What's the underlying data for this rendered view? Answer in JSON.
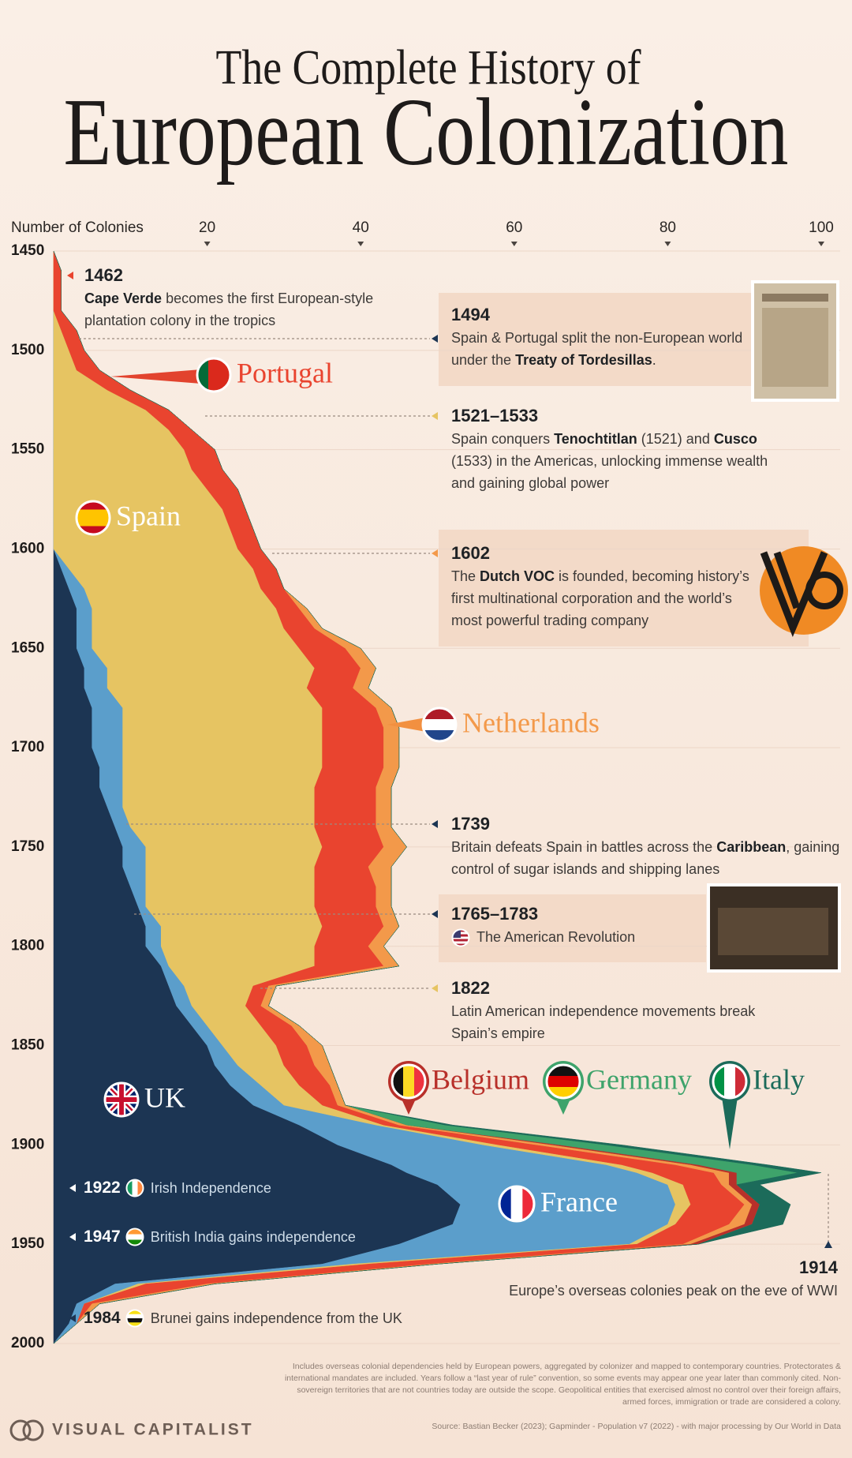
{
  "chart_data": {
    "type": "area",
    "stacked": true,
    "orientation": "vertical",
    "title": "The Complete History of",
    "subtitle": "European Colonization",
    "ylabel": "Number of Colonies",
    "xlim": [
      1450,
      2000
    ],
    "xticks": [
      1450,
      1500,
      1550,
      1600,
      1650,
      1700,
      1750,
      1800,
      1850,
      1900,
      1950,
      2000
    ],
    "ylim": [
      0,
      100
    ],
    "yticks": [
      20,
      40,
      60,
      80,
      100
    ],
    "grid": true,
    "x": [
      1450,
      1460,
      1470,
      1480,
      1490,
      1500,
      1510,
      1520,
      1530,
      1540,
      1550,
      1560,
      1570,
      1580,
      1590,
      1600,
      1610,
      1620,
      1630,
      1640,
      1650,
      1660,
      1670,
      1680,
      1690,
      1700,
      1710,
      1720,
      1730,
      1740,
      1750,
      1760,
      1770,
      1780,
      1790,
      1800,
      1810,
      1820,
      1830,
      1840,
      1850,
      1860,
      1870,
      1880,
      1890,
      1900,
      1910,
      1914,
      1920,
      1930,
      1940,
      1950,
      1960,
      1970,
      1980,
      1990,
      2000
    ],
    "series": [
      {
        "name": "UK",
        "color": "#1c3553",
        "values": [
          0,
          0,
          0,
          0,
          0,
          0,
          0,
          0,
          0,
          0,
          0,
          0,
          0,
          0,
          0,
          0,
          1,
          2,
          3,
          3,
          3,
          4,
          4,
          5,
          5,
          5,
          6,
          6,
          7,
          8,
          9,
          9,
          10,
          11,
          12,
          12,
          14,
          15,
          16,
          18,
          20,
          21,
          23,
          26,
          32,
          37,
          44,
          46,
          50,
          53,
          52,
          45,
          35,
          8,
          3,
          2,
          0
        ]
      },
      {
        "name": "France",
        "color": "#5b9ecb",
        "values": [
          0,
          0,
          0,
          0,
          0,
          0,
          0,
          0,
          0,
          0,
          0,
          0,
          0,
          0,
          0,
          0,
          1,
          2,
          2,
          2,
          2,
          3,
          3,
          4,
          4,
          4,
          3,
          3,
          2,
          2,
          3,
          3,
          2,
          1,
          2,
          2,
          1,
          2,
          2,
          2,
          2,
          3,
          4,
          4,
          10,
          19,
          28,
          30,
          30,
          28,
          28,
          30,
          4,
          3,
          1,
          1,
          0
        ]
      },
      {
        "name": "Spain",
        "color": "#e6c462",
        "values": [
          0,
          0,
          0,
          0,
          1,
          2,
          3,
          7,
          12,
          15,
          17,
          18,
          20,
          22,
          23,
          24,
          24,
          23,
          24,
          25,
          27,
          27,
          26,
          26,
          26,
          26,
          26,
          25,
          25,
          24,
          23,
          22,
          22,
          22,
          21,
          20,
          19,
          9,
          7,
          7,
          7,
          6,
          5,
          5,
          1,
          2,
          2,
          2,
          2,
          2,
          1,
          1,
          2,
          1,
          0,
          0,
          0
        ]
      },
      {
        "name": "Portugal",
        "color": "#e9442f",
        "values": [
          0,
          1,
          1,
          1,
          2,
          2,
          3,
          3,
          3,
          3,
          4,
          4,
          4,
          3,
          3,
          3,
          3,
          3,
          3,
          4,
          6,
          6,
          6,
          7,
          8,
          8,
          8,
          8,
          8,
          8,
          8,
          7,
          8,
          8,
          8,
          7,
          9,
          2,
          2,
          4,
          4,
          4,
          4,
          2,
          2,
          5,
          7,
          8,
          5,
          7,
          7,
          6,
          8,
          8,
          1,
          0,
          0
        ]
      },
      {
        "name": "Netherlands",
        "color": "#f3994a",
        "values": [
          0,
          0,
          0,
          0,
          0,
          0,
          0,
          0,
          0,
          0,
          0,
          0,
          0,
          0,
          0,
          0,
          0,
          0,
          1,
          1,
          2,
          2,
          2,
          2,
          2,
          2,
          2,
          2,
          2,
          2,
          3,
          3,
          2,
          2,
          2,
          2,
          2,
          1,
          1,
          1,
          2,
          2,
          1,
          1,
          1,
          2,
          2,
          2,
          1,
          1,
          2,
          1,
          1,
          1,
          1,
          0,
          0
        ]
      },
      {
        "name": "Belgium",
        "color": "#b8302a",
        "values": [
          0,
          0,
          0,
          0,
          0,
          0,
          0,
          0,
          0,
          0,
          0,
          0,
          0,
          0,
          0,
          0,
          0,
          0,
          0,
          0,
          0,
          0,
          0,
          0,
          0,
          0,
          0,
          0,
          0,
          0,
          0,
          0,
          0,
          0,
          0,
          0,
          0,
          0,
          0,
          0,
          0,
          0,
          0,
          0,
          0,
          1,
          1,
          1,
          1,
          1,
          1,
          1,
          0,
          0,
          0,
          0,
          0
        ]
      },
      {
        "name": "Germany",
        "color": "#3ea36b",
        "values": [
          0,
          0,
          0,
          0,
          0,
          0,
          0,
          0,
          0,
          0,
          0,
          0,
          0,
          0,
          0,
          0,
          0,
          0,
          0,
          0,
          0,
          0,
          0,
          0,
          0,
          0,
          0,
          0,
          0,
          0,
          0,
          0,
          0,
          0,
          0,
          0,
          0,
          0,
          0,
          0,
          0,
          0,
          0,
          0,
          5,
          6,
          7,
          8,
          0,
          0,
          0,
          0,
          0,
          0,
          0,
          0,
          0
        ]
      },
      {
        "name": "Italy",
        "color": "#1c6b5a",
        "values": [
          0,
          0,
          0,
          0,
          0,
          0,
          0,
          0,
          0,
          0,
          0,
          0,
          0,
          0,
          0,
          0,
          0,
          0,
          0,
          0,
          0,
          0,
          0,
          0,
          0,
          0,
          0,
          0,
          0,
          0,
          0,
          0,
          0,
          0,
          0,
          0,
          0,
          0,
          0,
          0,
          0,
          0,
          0,
          0,
          1,
          2,
          2,
          3,
          3,
          4,
          4,
          0,
          0,
          0,
          0,
          0,
          0
        ]
      }
    ],
    "annotations": [
      {
        "year": "1462",
        "text": [
          {
            "t": "Cape Verde",
            "b": true
          },
          {
            "t": " becomes the first European-style plantation colony in the tropics"
          }
        ]
      },
      {
        "year": "1494",
        "text": [
          {
            "t": "Spain & Portugal split the non-European world under the "
          },
          {
            "t": "Treaty of Tordesillas",
            "b": true
          },
          {
            "t": "."
          }
        ]
      },
      {
        "year": "1521–1533",
        "text": [
          {
            "t": "Spain conquers "
          },
          {
            "t": "Tenochtitlan",
            "b": true
          },
          {
            "t": " (1521) and "
          },
          {
            "t": "Cusco",
            "b": true
          },
          {
            "t": " (1533) in the Americas, unlocking immense wealth and gaining global power"
          }
        ]
      },
      {
        "year": "1602",
        "text": [
          {
            "t": "The "
          },
          {
            "t": "Dutch VOC",
            "b": true
          },
          {
            "t": " is founded, becoming history’s first multinational corporation and the world’s most powerful trading company"
          }
        ]
      },
      {
        "year": "1739",
        "text": [
          {
            "t": "Britain defeats Spain in battles across the "
          },
          {
            "t": "Caribbean",
            "b": true
          },
          {
            "t": ", gaining control of sugar islands and shipping lanes"
          }
        ]
      },
      {
        "year": "1765–1783",
        "text": [
          {
            "t": "The American Revolution"
          }
        ]
      },
      {
        "year": "1822",
        "text": [
          {
            "t": "Latin American independence movements break Spain’s empire"
          }
        ]
      },
      {
        "year": "1922",
        "text": [
          {
            "t": "Irish Independence"
          }
        ]
      },
      {
        "year": "1947",
        "text": [
          {
            "t": "British India gains independence"
          }
        ]
      },
      {
        "year": "1984",
        "text": [
          {
            "t": "Brunei gains independence from the UK"
          }
        ]
      },
      {
        "year": "1914",
        "text": [
          {
            "t": "Europe’s overseas colonies peak on the eve of WWI"
          }
        ]
      }
    ],
    "footnote": "Includes overseas colonial dependencies held by European powers, aggregated by colonizer and mapped to contemporary countries. Protectorates & international mandates are included. Years follow a “last year of rule” convention, so some events may appear one year later than commonly cited. Non-sovereign territories that are not countries today are outside the scope. Geopolitical entities that exercised almost no control over their foreign affairs, armed forces, immigration or trade are considered a colony.",
    "source": "Source: Bastian Becker (2023); Gapminder - Population v7 (2022) - with major processing by Our World in Data",
    "brand": "VISUAL CAPITALIST"
  }
}
